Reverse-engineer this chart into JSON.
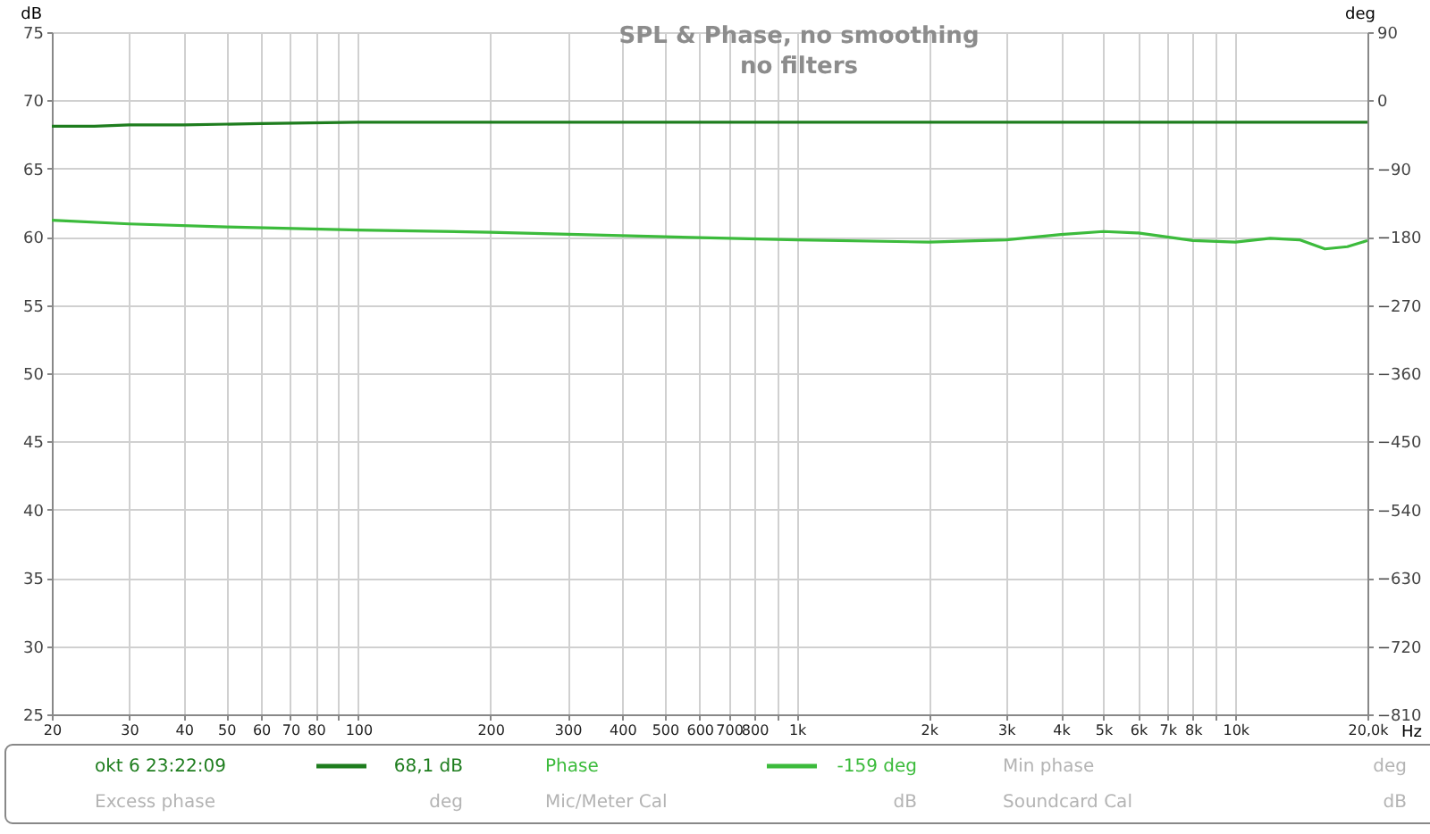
{
  "chart_data": {
    "type": "line",
    "title": "SPL & Phase, no smoothing",
    "subtitle": "no filters",
    "xlabel": "Hz",
    "ylabel": "dB",
    "y2label": "deg",
    "log": "x",
    "grid": true,
    "legend": "bottom",
    "marker": "none",
    "line_style": "solid",
    "xlim": [
      20,
      20000
    ],
    "xticks": [
      20,
      30,
      40,
      50,
      60,
      70,
      80,
      {
        "value": 90,
        "label": null
      },
      100,
      200,
      300,
      400,
      500,
      600,
      700,
      800,
      {
        "value": 900,
        "label": null
      },
      {
        "value": 1000,
        "label": "1k"
      },
      {
        "value": 2000,
        "label": "2k"
      },
      {
        "value": 3000,
        "label": "3k"
      },
      {
        "value": 4000,
        "label": "4k"
      },
      {
        "value": 5000,
        "label": "5k"
      },
      {
        "value": 6000,
        "label": "6k"
      },
      {
        "value": 7000,
        "label": "7k"
      },
      {
        "value": 8000,
        "label": "8k"
      },
      {
        "value": 9000,
        "label": null
      },
      {
        "value": 10000,
        "label": "10k"
      },
      {
        "value": 20000,
        "label": "20,0k"
      }
    ],
    "ylim": [
      25,
      75
    ],
    "yticks": [
      25,
      30,
      35,
      40,
      45,
      50,
      55,
      60,
      65,
      70,
      75
    ],
    "y2lim": [
      -810,
      90
    ],
    "y2ticks": [
      -810,
      -720,
      -630,
      -540,
      -450,
      -360,
      -270,
      -180,
      -90,
      0,
      90
    ],
    "series": [
      {
        "name": "okt 6 23:22:09",
        "color": "#1e7d1e",
        "x": [
          20,
          25,
          30,
          40,
          60,
          100,
          1000,
          10000,
          20000
        ],
        "values": [
          68.1,
          68.1,
          68.2,
          68.2,
          68.3,
          68.4,
          68.4,
          68.4,
          68.4
        ]
      },
      {
        "name": "Phase",
        "color": "#3cbb3c",
        "axis": "y2",
        "x": [
          20,
          30,
          50,
          100,
          200,
          500,
          1000,
          2000,
          3000,
          4000,
          5000,
          6000,
          8000,
          10000,
          12000,
          14000,
          16000,
          18000,
          20000
        ],
        "values": [
          -158,
          -163,
          -167,
          -171,
          -174,
          -180,
          -184,
          -187,
          -184,
          -177,
          -173,
          -175,
          -185,
          -187,
          -182,
          -184,
          -196,
          -193,
          -185
        ]
      }
    ],
    "annotations": [
      "68,1 dB",
      "-159 deg",
      "Min phase",
      "deg",
      "Excess phase",
      "deg",
      "Mic/Meter Cal",
      "dB",
      "Soundcard Cal",
      "dB"
    ]
  }
}
